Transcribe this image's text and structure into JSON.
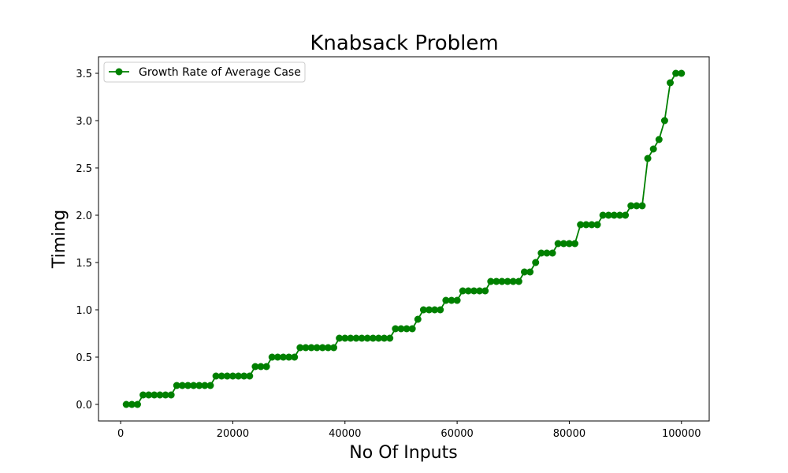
{
  "chart_data": {
    "type": "line",
    "title": "Knabsack Problem",
    "xlabel": "No Of Inputs",
    "ylabel": "Timing",
    "xlim": [
      -3950,
      104950
    ],
    "ylim": [
      -0.175,
      3.675
    ],
    "xticks": [
      0,
      20000,
      40000,
      60000,
      80000,
      100000
    ],
    "xtick_labels": [
      "0",
      "20000",
      "40000",
      "60000",
      "80000",
      "100000"
    ],
    "yticks": [
      0.0,
      0.5,
      1.0,
      1.5,
      2.0,
      2.5,
      3.0,
      3.5
    ],
    "ytick_labels": [
      "0.0",
      "0.5",
      "1.0",
      "1.5",
      "2.0",
      "2.5",
      "3.0",
      "3.5"
    ],
    "grid": false,
    "legend_position": "top-left",
    "series": [
      {
        "name": "Growth Rate of Average Case",
        "color": "#008000",
        "marker": "circle",
        "x": [
          1000,
          2000,
          3000,
          4000,
          5000,
          6000,
          7000,
          8000,
          9000,
          10000,
          11000,
          12000,
          13000,
          14000,
          15000,
          16000,
          17000,
          18000,
          19000,
          20000,
          21000,
          22000,
          23000,
          24000,
          25000,
          26000,
          27000,
          28000,
          29000,
          30000,
          31000,
          32000,
          33000,
          34000,
          35000,
          36000,
          37000,
          38000,
          39000,
          40000,
          41000,
          42000,
          43000,
          44000,
          45000,
          46000,
          47000,
          48000,
          49000,
          50000,
          51000,
          52000,
          53000,
          54000,
          55000,
          56000,
          57000,
          58000,
          59000,
          60000,
          61000,
          62000,
          63000,
          64000,
          65000,
          66000,
          67000,
          68000,
          69000,
          70000,
          71000,
          72000,
          73000,
          74000,
          75000,
          76000,
          77000,
          78000,
          79000,
          80000,
          81000,
          82000,
          83000,
          84000,
          85000,
          86000,
          87000,
          88000,
          89000,
          90000,
          91000,
          92000,
          93000,
          94000,
          95000,
          96000,
          97000,
          98000,
          99000,
          100000
        ],
        "y": [
          0.0,
          0.0,
          0.0,
          0.1,
          0.1,
          0.1,
          0.1,
          0.1,
          0.1,
          0.2,
          0.2,
          0.2,
          0.2,
          0.2,
          0.2,
          0.2,
          0.3,
          0.3,
          0.3,
          0.3,
          0.3,
          0.3,
          0.3,
          0.4,
          0.4,
          0.4,
          0.5,
          0.5,
          0.5,
          0.5,
          0.5,
          0.6,
          0.6,
          0.6,
          0.6,
          0.6,
          0.6,
          0.6,
          0.7,
          0.7,
          0.7,
          0.7,
          0.7,
          0.7,
          0.7,
          0.7,
          0.7,
          0.7,
          0.8,
          0.8,
          0.8,
          0.8,
          0.9,
          1.0,
          1.0,
          1.0,
          1.0,
          1.1,
          1.1,
          1.1,
          1.2,
          1.2,
          1.2,
          1.2,
          1.2,
          1.3,
          1.3,
          1.3,
          1.3,
          1.3,
          1.3,
          1.4,
          1.4,
          1.5,
          1.6,
          1.6,
          1.6,
          1.7,
          1.7,
          1.7,
          1.7,
          1.9,
          1.9,
          1.9,
          1.9,
          2.0,
          2.0,
          2.0,
          2.0,
          2.0,
          2.1,
          2.1,
          2.1,
          2.6,
          2.7,
          2.8,
          3.0,
          3.4,
          3.5,
          3.5
        ]
      }
    ]
  }
}
